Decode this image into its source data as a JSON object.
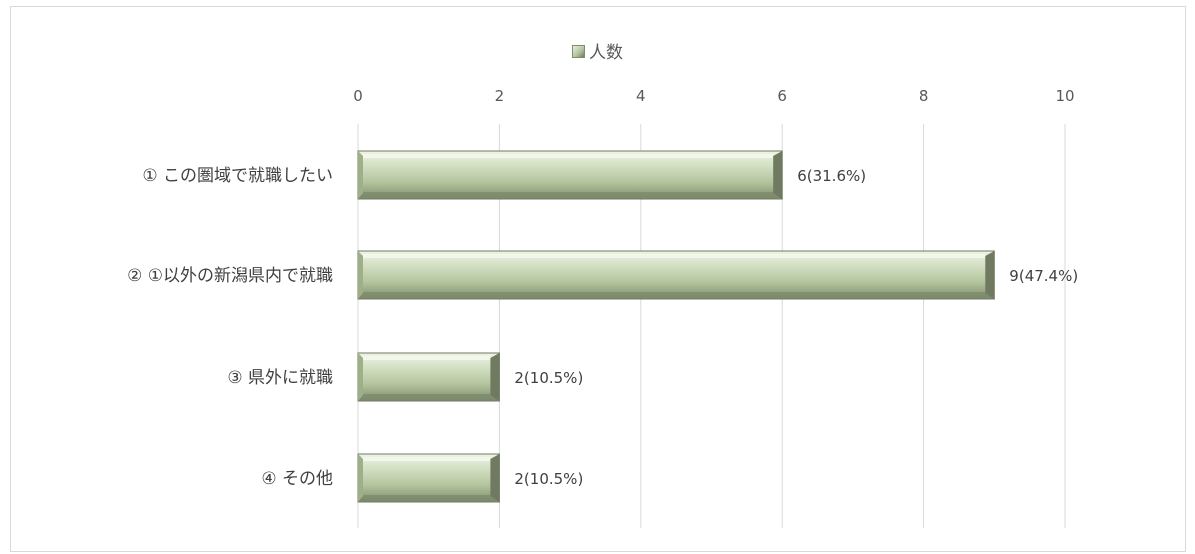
{
  "chart_data": {
    "type": "bar",
    "orientation": "horizontal",
    "categories": [
      "① この圏域で就職したい",
      "② ①以外の新潟県内で就職",
      "③ 県外に就職",
      "④ その他"
    ],
    "series": [
      {
        "name": "人数",
        "values": [
          6,
          9,
          2,
          2
        ],
        "data_labels": [
          "6(31.6%)",
          "9(47.4%)",
          "2(10.5%)",
          "2(10.5%)"
        ]
      }
    ],
    "xlim": [
      0,
      10
    ],
    "xticks": [
      0,
      2,
      4,
      6,
      8,
      10
    ],
    "x_axis_position": "top",
    "grid": true,
    "legend_position": "top",
    "bar_color": "#b6c7a0",
    "bar_edge_color": "#6f7a60",
    "grid_color": "#d9d9d9"
  }
}
